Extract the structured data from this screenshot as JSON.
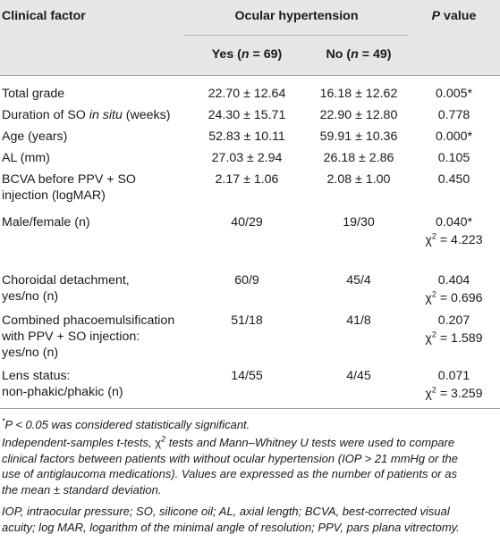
{
  "header": {
    "clinical_factor": "Clinical factor",
    "group": "Ocular hypertension",
    "p_value_p": "P",
    "p_value_rest": " value",
    "yes_label": "Yes (",
    "yes_n": "n",
    "yes_count": " = 69)",
    "no_label": "No (",
    "no_n": "n",
    "no_count": " = 49)"
  },
  "rows": [
    {
      "factor": "Total grade",
      "yes": "22.70 ± 12.64",
      "no": "16.18 ± 12.62",
      "p": "0.005*",
      "chi": ""
    },
    {
      "factor_a": "Duration of SO ",
      "factor_i": "in situ",
      "factor_b": " (weeks)",
      "yes": "24.30 ± 15.71",
      "no": "22.90 ± 12.80",
      "p": "0.778",
      "chi": ""
    },
    {
      "factor": "Age (years)",
      "yes": "52.83 ± 10.11",
      "no": "59.91 ± 10.36",
      "p": "0.000*",
      "chi": ""
    },
    {
      "factor": "AL (mm)",
      "yes": "27.03 ± 2.94",
      "no": "26.18 ± 2.86",
      "p": "0.105",
      "chi": ""
    },
    {
      "factor_l1": "BCVA before PPV + SO",
      "factor_l2": "injection (logMAR)",
      "yes": "2.17 ± 1.06",
      "no": "2.08 ± 1.00",
      "p": "0.450",
      "chi": ""
    },
    {
      "factor": "Male/female (n)",
      "yes": "40/29",
      "no": "19/30",
      "p": "0.040*",
      "chi": "χ2 = 4.223"
    },
    {
      "factor_l1": "Choroidal detachment,",
      "factor_l2": "yes/no (n)",
      "yes": "60/9",
      "no": "45/4",
      "p": "0.404",
      "chi": "χ2 = 0.696"
    },
    {
      "factor_l1": "Combined phacoemulsification",
      "factor_l2": "with PPV + SO injection:",
      "factor_l3": "yes/no (n)",
      "yes": "51/18",
      "no": "41/8",
      "p": "0.207",
      "chi": "χ2 = 1.589"
    },
    {
      "factor_l1": "Lens status:",
      "factor_l2": "non-phakic/phakic (n)",
      "yes": "14/55",
      "no": "4/45",
      "p": "0.071",
      "chi": "χ2 = 3.259"
    }
  ],
  "chi_symbol": "χ",
  "chi_sup": "2",
  "footnotes": {
    "sig_star": "*",
    "sig_p": "P",
    "sig_text": " < 0.05 was considered statistically significant.",
    "methods_l1a": "Independent-samples t-tests, ",
    "methods_chi": "χ",
    "methods_sup": "2",
    "methods_l1b": " tests and Mann–Whitney U tests were used to compare",
    "methods_l2": "clinical factors between patients with without ocular hypertension (IOP > 21 mmHg or the",
    "methods_l3": "use of antiglaucoma medications). Values are expressed as the number of patients or as",
    "methods_l4": "the mean ± standard deviation.",
    "abbr_l1": "IOP, intraocular pressure; SO, silicone oil; AL, axial length; BCVA, best-corrected visual",
    "abbr_l2": "acuity; log MAR, logarithm of the minimal angle of resolution; PPV, pars plana vitrectomy."
  }
}
